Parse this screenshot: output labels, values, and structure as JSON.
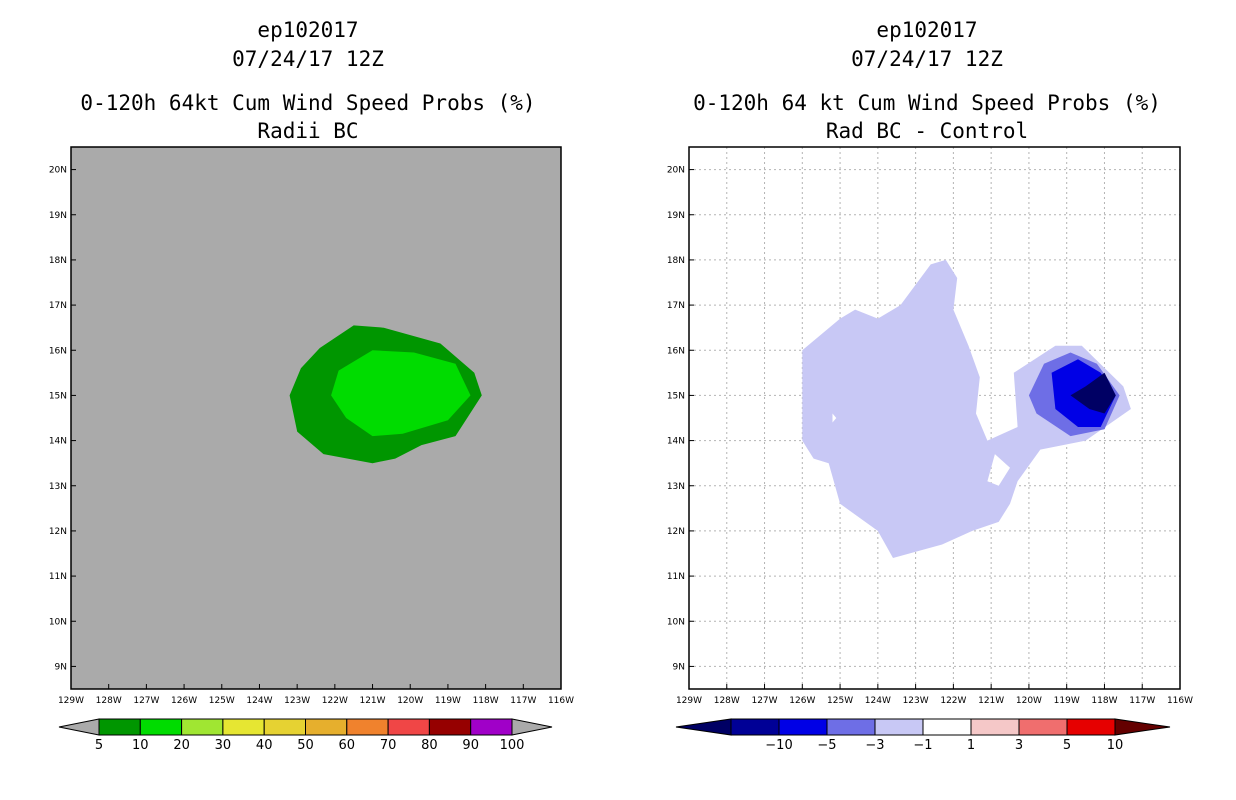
{
  "chart_data": [
    {
      "type": "filled-contour-map",
      "case_id": "ep102017",
      "datetime": "07/24/17 12Z",
      "title": "0-120h 64kt Cum Wind Speed Probs (%)",
      "subtitle": "Radii BC",
      "x_ticks": [
        "129W",
        "128W",
        "127W",
        "126W",
        "125W",
        "124W",
        "123W",
        "122W",
        "121W",
        "120W",
        "119W",
        "118W",
        "117W",
        "116W"
      ],
      "y_ticks": [
        "20N",
        "19N",
        "18N",
        "17N",
        "16N",
        "15N",
        "14N",
        "13N",
        "12N",
        "11N",
        "10N",
        "9N"
      ],
      "xlim": [
        -129,
        -116
      ],
      "ylim": [
        8.5,
        20.5
      ],
      "grid": false,
      "background_color": "#aaaaaa",
      "colorbar": {
        "labels": [
          "5",
          "10",
          "20",
          "30",
          "40",
          "50",
          "60",
          "70",
          "80",
          "90",
          "100"
        ],
        "colors": [
          "#009600",
          "#00dc00",
          "#a0e632",
          "#e6e632",
          "#e6d232",
          "#e6af2d",
          "#f0822d",
          "#f04646",
          "#960000",
          "#a000c8"
        ],
        "end_color": "#aaaaaa"
      },
      "contours": [
        {
          "level": "5-10",
          "color": "#009600",
          "points": [
            [
              -122.4,
              16.05
            ],
            [
              -121.5,
              16.55
            ],
            [
              -120.7,
              16.5
            ],
            [
              -119.2,
              16.15
            ],
            [
              -118.3,
              15.5
            ],
            [
              -118.1,
              15.0
            ],
            [
              -118.8,
              14.1
            ],
            [
              -119.7,
              13.9
            ],
            [
              -120.4,
              13.6
            ],
            [
              -121.0,
              13.5
            ],
            [
              -122.3,
              13.7
            ],
            [
              -123.0,
              14.2
            ],
            [
              -123.2,
              15.0
            ],
            [
              -122.9,
              15.6
            ]
          ]
        },
        {
          "level": "10-20",
          "color": "#00dc00",
          "points": [
            [
              -121.0,
              16.0
            ],
            [
              -119.9,
              15.95
            ],
            [
              -118.8,
              15.7
            ],
            [
              -118.4,
              15.0
            ],
            [
              -119.0,
              14.45
            ],
            [
              -120.2,
              14.15
            ],
            [
              -121.0,
              14.1
            ],
            [
              -121.7,
              14.5
            ],
            [
              -122.1,
              15.0
            ],
            [
              -121.9,
              15.55
            ]
          ]
        }
      ]
    },
    {
      "type": "filled-contour-map",
      "case_id": "ep102017",
      "datetime": "07/24/17 12Z",
      "title": "0-120h 64 kt Cum Wind Speed Probs (%)",
      "subtitle": "Rad BC - Control",
      "x_ticks": [
        "129W",
        "128W",
        "127W",
        "126W",
        "125W",
        "124W",
        "123W",
        "122W",
        "121W",
        "120W",
        "119W",
        "118W",
        "117W",
        "116W"
      ],
      "y_ticks": [
        "20N",
        "19N",
        "18N",
        "17N",
        "16N",
        "15N",
        "14N",
        "13N",
        "12N",
        "11N",
        "10N",
        "9N"
      ],
      "xlim": [
        -129,
        -116
      ],
      "ylim": [
        8.5,
        20.5
      ],
      "grid": true,
      "background_color": "#ffffff",
      "colorbar": {
        "labels": [
          "-10",
          "-5",
          "-3",
          "-1",
          "1",
          "3",
          "5",
          "10"
        ],
        "colors": [
          "#000096",
          "#0000e6",
          "#6e6ee6",
          "#c8c8f5",
          "#ffffff",
          "#f5c8c8",
          "#f06e6e",
          "#e60000"
        ],
        "low_end_color": "#000064",
        "high_end_color": "#640000"
      },
      "contours": [
        {
          "level": "-3 to -1",
          "color": "#c8c8f5",
          "points": [
            [
              -126.0,
              16.0
            ],
            [
              -125.0,
              16.7
            ],
            [
              -124.6,
              16.9
            ],
            [
              -124.0,
              16.7
            ],
            [
              -123.4,
              17.0
            ],
            [
              -122.6,
              17.9
            ],
            [
              -122.2,
              18.0
            ],
            [
              -121.9,
              17.6
            ],
            [
              -122.0,
              16.9
            ],
            [
              -121.6,
              16.1
            ],
            [
              -121.3,
              15.4
            ],
            [
              -121.4,
              14.6
            ],
            [
              -121.1,
              14.0
            ],
            [
              -120.3,
              14.3
            ],
            [
              -120.4,
              15.5
            ],
            [
              -119.3,
              16.1
            ],
            [
              -118.6,
              16.1
            ],
            [
              -117.5,
              15.2
            ],
            [
              -117.3,
              14.7
            ],
            [
              -118.5,
              14.0
            ],
            [
              -119.7,
              13.8
            ],
            [
              -120.3,
              13.1
            ],
            [
              -120.5,
              12.6
            ],
            [
              -120.8,
              12.2
            ],
            [
              -121.5,
              12.0
            ],
            [
              -122.3,
              11.7
            ],
            [
              -123.6,
              11.4
            ],
            [
              -124.0,
              12.0
            ],
            [
              -125.0,
              12.6
            ],
            [
              -125.3,
              13.5
            ],
            [
              -125.7,
              13.6
            ],
            [
              -126.0,
              14.0
            ]
          ],
          "holes": [
            [
              [
                -120.9,
                13.7
              ],
              [
                -120.5,
                13.4
              ],
              [
                -120.8,
                13.0
              ],
              [
                -121.1,
                13.1
              ]
            ],
            [
              [
                -125.2,
                14.6
              ],
              [
                -125.1,
                14.5
              ],
              [
                -125.2,
                14.4
              ]
            ]
          ]
        },
        {
          "level": "-5 to -3",
          "color": "#6e6ee6",
          "points": [
            [
              -119.6,
              15.7
            ],
            [
              -118.9,
              15.95
            ],
            [
              -118.2,
              15.7
            ],
            [
              -117.6,
              15.0
            ],
            [
              -118.0,
              14.25
            ],
            [
              -118.9,
              14.1
            ],
            [
              -119.8,
              14.6
            ],
            [
              -120.0,
              15.0
            ]
          ]
        },
        {
          "level": "-10 to -5",
          "color": "#0000e6",
          "points": [
            [
              -119.4,
              15.5
            ],
            [
              -118.7,
              15.8
            ],
            [
              -118.1,
              15.5
            ],
            [
              -117.7,
              15.0
            ],
            [
              -118.1,
              14.3
            ],
            [
              -118.7,
              14.3
            ],
            [
              -119.3,
              14.7
            ]
          ]
        },
        {
          "level": "< -10",
          "color": "#000064",
          "points": [
            [
              -118.9,
              15.0
            ],
            [
              -118.5,
              15.2
            ],
            [
              -118.0,
              15.5
            ],
            [
              -117.7,
              15.0
            ],
            [
              -118.0,
              14.6
            ],
            [
              -118.4,
              14.7
            ]
          ]
        }
      ]
    }
  ]
}
